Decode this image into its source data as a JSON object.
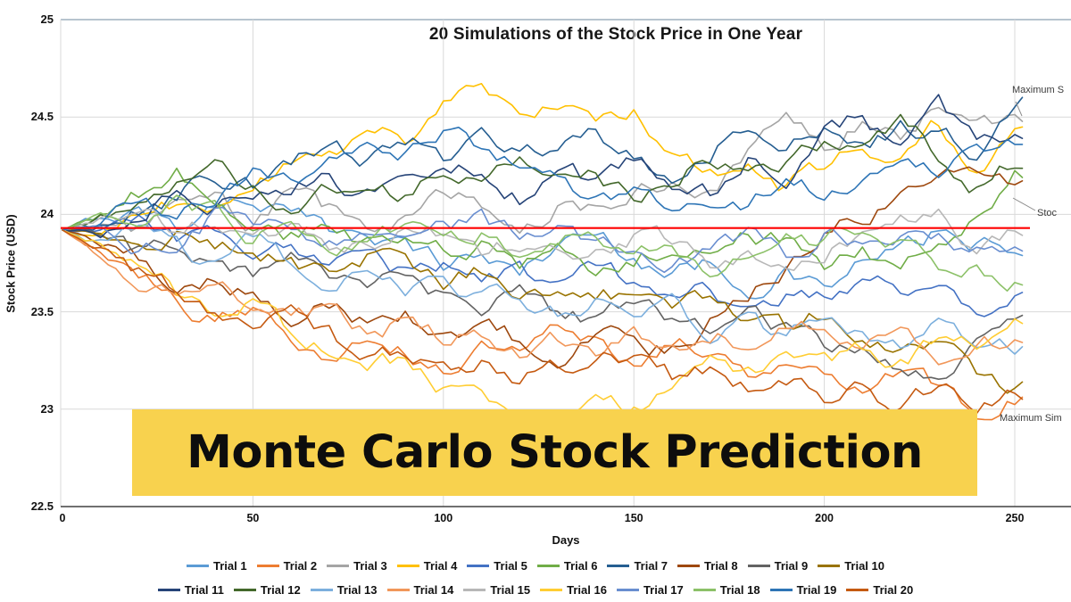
{
  "banner": {
    "text": "Monte Carlo Stock Prediction",
    "bg_color": "#F8D24E",
    "text_color": "#0d0d0d"
  },
  "annotations": {
    "maximum_label": "Maximum S",
    "reference_label": "Stoc",
    "minimum_label": "Maximum Sim"
  },
  "chart_data": {
    "type": "line",
    "title": "20 Simulations of the Stock Price in One Year",
    "xlabel": "Days",
    "ylabel": "Stock Price (USD)",
    "xlim": [
      0,
      250
    ],
    "ylim": [
      22.5,
      25
    ],
    "x_ticks": [
      0,
      50,
      100,
      150,
      200,
      250
    ],
    "y_ticks": [
      25,
      24.5,
      24,
      23.5,
      23,
      22.5
    ],
    "grid": true,
    "legend_position": "bottom",
    "reference_line": {
      "value": 23.93,
      "color": "#FF0000"
    },
    "x": [
      0,
      10,
      20,
      30,
      40,
      50,
      60,
      70,
      80,
      90,
      100,
      110,
      120,
      130,
      140,
      150,
      160,
      170,
      180,
      190,
      200,
      210,
      220,
      230,
      240,
      250
    ],
    "series": [
      {
        "name": "Trial 1",
        "color": "#5B9BD5",
        "values": [
          23.92,
          23.98,
          24.02,
          23.95,
          24.05,
          24.1,
          24.0,
          23.9,
          23.95,
          23.85,
          23.75,
          23.8,
          23.7,
          23.85,
          23.9,
          23.8,
          23.7,
          23.75,
          23.65,
          23.7,
          23.6,
          23.75,
          23.8,
          23.9,
          23.85,
          23.78
        ]
      },
      {
        "name": "Trial 2",
        "color": "#ED7D31",
        "values": [
          23.92,
          23.8,
          23.65,
          23.55,
          23.45,
          23.5,
          23.35,
          23.3,
          23.4,
          23.3,
          23.2,
          23.35,
          23.3,
          23.4,
          23.35,
          23.25,
          23.35,
          23.3,
          23.2,
          23.3,
          23.25,
          23.15,
          23.2,
          23.1,
          22.97,
          23.05
        ]
      },
      {
        "name": "Trial 3",
        "color": "#A5A5A5",
        "values": [
          23.92,
          23.95,
          23.9,
          24.0,
          24.05,
          23.95,
          24.1,
          24.0,
          23.9,
          24.0,
          24.1,
          24.05,
          23.95,
          24.05,
          24.0,
          24.1,
          24.2,
          24.1,
          24.3,
          24.45,
          24.35,
          24.5,
          24.4,
          24.55,
          24.45,
          24.45
        ]
      },
      {
        "name": "Trial 4",
        "color": "#FFC000",
        "values": [
          23.92,
          23.85,
          23.95,
          24.05,
          24.0,
          24.15,
          24.25,
          24.3,
          24.45,
          24.4,
          24.55,
          24.65,
          24.55,
          24.6,
          24.45,
          24.5,
          24.35,
          24.2,
          24.3,
          24.15,
          24.25,
          24.4,
          24.3,
          24.45,
          24.25,
          24.4
        ]
      },
      {
        "name": "Trial 5",
        "color": "#4472C4",
        "values": [
          23.92,
          23.88,
          23.95,
          23.85,
          23.9,
          23.8,
          23.85,
          23.75,
          23.8,
          23.7,
          23.75,
          23.65,
          23.7,
          23.6,
          23.7,
          23.65,
          23.55,
          23.6,
          23.5,
          23.6,
          23.55,
          23.65,
          23.6,
          23.55,
          23.5,
          23.57
        ]
      },
      {
        "name": "Trial 6",
        "color": "#70AD47",
        "values": [
          23.92,
          24.0,
          24.1,
          24.2,
          24.1,
          24.0,
          23.9,
          23.95,
          23.85,
          23.9,
          23.8,
          23.85,
          23.75,
          23.8,
          23.7,
          23.75,
          23.85,
          23.8,
          23.9,
          23.85,
          23.75,
          23.8,
          23.7,
          23.85,
          24.0,
          24.22
        ]
      },
      {
        "name": "Trial 7",
        "color": "#255E91",
        "values": [
          23.92,
          23.95,
          24.05,
          24.1,
          24.2,
          24.15,
          24.25,
          24.35,
          24.3,
          24.4,
          24.3,
          24.45,
          24.35,
          24.3,
          24.4,
          24.3,
          24.2,
          24.35,
          24.45,
          24.4,
          24.5,
          24.35,
          24.45,
          24.4,
          24.3,
          24.58
        ]
      },
      {
        "name": "Trial 8",
        "color": "#9E480E",
        "values": [
          23.92,
          23.85,
          23.75,
          23.65,
          23.7,
          23.6,
          23.5,
          23.55,
          23.45,
          23.5,
          23.4,
          23.45,
          23.35,
          23.3,
          23.4,
          23.35,
          23.3,
          23.45,
          23.6,
          23.75,
          23.9,
          24.0,
          24.1,
          24.15,
          24.25,
          24.2
        ]
      },
      {
        "name": "Trial 9",
        "color": "#636363",
        "values": [
          23.92,
          23.9,
          23.8,
          23.85,
          23.75,
          23.7,
          23.8,
          23.7,
          23.6,
          23.65,
          23.55,
          23.5,
          23.6,
          23.5,
          23.45,
          23.55,
          23.45,
          23.4,
          23.5,
          23.4,
          23.3,
          23.35,
          23.25,
          23.2,
          23.35,
          23.42
        ]
      },
      {
        "name": "Trial 10",
        "color": "#997300",
        "values": [
          23.92,
          23.95,
          23.85,
          23.9,
          23.8,
          23.85,
          23.75,
          23.7,
          23.8,
          23.7,
          23.65,
          23.7,
          23.6,
          23.65,
          23.55,
          23.6,
          23.5,
          23.55,
          23.45,
          23.4,
          23.5,
          23.4,
          23.3,
          23.35,
          23.2,
          23.1
        ]
      },
      {
        "name": "Trial 11",
        "color": "#264478",
        "values": [
          23.92,
          23.9,
          24.0,
          24.1,
          24.05,
          24.15,
          24.1,
          24.2,
          24.1,
          24.2,
          24.3,
          24.2,
          24.1,
          24.25,
          24.15,
          24.3,
          24.2,
          24.1,
          24.3,
          24.2,
          24.4,
          24.5,
          24.35,
          24.55,
          24.4,
          24.45
        ]
      },
      {
        "name": "Trial 12",
        "color": "#43682B",
        "values": [
          23.92,
          23.98,
          24.05,
          24.15,
          24.25,
          24.15,
          24.05,
          24.15,
          24.2,
          24.1,
          24.2,
          24.15,
          24.25,
          24.15,
          24.2,
          24.1,
          24.2,
          24.3,
          24.2,
          24.3,
          24.4,
          24.3,
          24.45,
          24.3,
          24.15,
          24.27
        ]
      },
      {
        "name": "Trial 13",
        "color": "#7CAFDD",
        "values": [
          23.92,
          23.85,
          23.9,
          23.8,
          23.75,
          23.85,
          23.75,
          23.65,
          23.7,
          23.6,
          23.65,
          23.55,
          23.6,
          23.5,
          23.55,
          23.45,
          23.5,
          23.4,
          23.45,
          23.35,
          23.45,
          23.4,
          23.3,
          23.4,
          23.3,
          23.32
        ]
      },
      {
        "name": "Trial 14",
        "color": "#F1975A",
        "values": [
          23.92,
          23.8,
          23.7,
          23.6,
          23.65,
          23.55,
          23.45,
          23.5,
          23.4,
          23.45,
          23.35,
          23.4,
          23.3,
          23.35,
          23.25,
          23.35,
          23.3,
          23.4,
          23.35,
          23.45,
          23.4,
          23.3,
          23.35,
          23.25,
          23.3,
          23.36
        ]
      },
      {
        "name": "Trial 15",
        "color": "#B7B7B7",
        "values": [
          23.92,
          23.95,
          24.0,
          23.9,
          23.95,
          23.85,
          23.9,
          23.8,
          23.85,
          23.95,
          23.9,
          23.8,
          23.85,
          23.75,
          23.8,
          23.9,
          23.85,
          23.75,
          23.8,
          23.7,
          23.8,
          23.9,
          24.0,
          24.05,
          23.85,
          23.95
        ]
      },
      {
        "name": "Trial 16",
        "color": "#FFCD33",
        "values": [
          23.92,
          23.85,
          23.75,
          23.6,
          23.5,
          23.55,
          23.4,
          23.3,
          23.2,
          23.25,
          23.1,
          23.05,
          23.0,
          22.98,
          23.05,
          23.0,
          23.1,
          23.2,
          23.15,
          23.25,
          23.2,
          23.3,
          23.25,
          23.35,
          23.3,
          23.4
        ]
      },
      {
        "name": "Trial 17",
        "color": "#698ED0",
        "values": [
          23.92,
          23.95,
          23.85,
          23.9,
          24.0,
          23.9,
          23.95,
          23.85,
          23.9,
          23.8,
          23.9,
          23.95,
          23.85,
          23.9,
          23.8,
          23.85,
          23.75,
          23.85,
          23.9,
          23.8,
          23.9,
          23.85,
          23.95,
          23.9,
          23.8,
          23.86
        ]
      },
      {
        "name": "Trial 18",
        "color": "#8CC168",
        "values": [
          23.92,
          24.0,
          23.95,
          24.05,
          24.0,
          23.9,
          23.95,
          23.85,
          23.9,
          23.95,
          23.85,
          23.9,
          23.8,
          23.85,
          23.9,
          23.8,
          23.85,
          23.75,
          23.8,
          23.9,
          23.85,
          23.95,
          23.85,
          23.75,
          23.7,
          23.65
        ]
      },
      {
        "name": "Trial 19",
        "color": "#2E75B6",
        "values": [
          23.92,
          23.95,
          24.05,
          24.0,
          24.1,
          24.2,
          24.15,
          24.25,
          24.35,
          24.3,
          24.45,
          24.35,
          24.25,
          24.15,
          24.05,
          24.1,
          24.0,
          24.1,
          24.05,
          24.15,
          24.1,
          24.2,
          24.3,
          24.25,
          24.35,
          24.4
        ]
      },
      {
        "name": "Trial 20",
        "color": "#C55A11",
        "values": [
          23.92,
          23.82,
          23.7,
          23.6,
          23.5,
          23.4,
          23.45,
          23.35,
          23.25,
          23.3,
          23.2,
          23.25,
          23.15,
          23.2,
          23.3,
          23.25,
          23.15,
          23.2,
          23.1,
          23.15,
          23.05,
          23.1,
          23.0,
          23.1,
          23.0,
          23.07
        ]
      }
    ]
  }
}
